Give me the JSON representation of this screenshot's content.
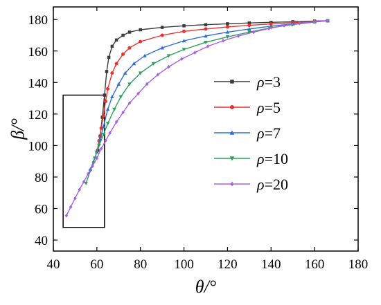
{
  "chart_data": {
    "type": "line",
    "xlabel": "θ/°",
    "ylabel": "β/°",
    "xlim": [
      40,
      180
    ],
    "ylim": [
      33,
      188
    ],
    "x_ticks": [
      40,
      60,
      80,
      100,
      120,
      140,
      160,
      180
    ],
    "y_ticks": [
      40,
      60,
      80,
      100,
      120,
      140,
      160,
      180
    ],
    "legend_position": "right",
    "grid": false,
    "annotation": {
      "type": "rectangle",
      "x_range": [
        44.5,
        63.5
      ],
      "y_range": [
        48,
        132
      ]
    },
    "series": [
      {
        "name": "ρ=3",
        "legend_prefix": "ρ",
        "legend_suffix": "=3",
        "color": "#3b3b3b",
        "marker": "square",
        "x": [
          60.5,
          61.5,
          62.5,
          63.5,
          64.5,
          65.5,
          67,
          69,
          72,
          75,
          80,
          90,
          100,
          110,
          120,
          130,
          140,
          150,
          160,
          166
        ],
        "y": [
          97,
          106,
          118,
          132,
          147,
          156,
          163,
          167,
          170,
          172,
          173.5,
          175,
          176,
          176.7,
          177.3,
          177.8,
          178.2,
          178.6,
          179,
          179.2
        ]
      },
      {
        "name": "ρ=5",
        "legend_prefix": "ρ",
        "legend_suffix": "=5",
        "color": "#e8322d",
        "marker": "circle",
        "x": [
          60,
          61,
          62,
          63,
          64,
          65,
          67,
          69,
          72,
          75,
          80,
          90,
          100,
          110,
          120,
          130,
          140,
          150,
          160,
          166
        ],
        "y": [
          96,
          103,
          111,
          119,
          128,
          136,
          146,
          152,
          158,
          162,
          166,
          170,
          172.5,
          174,
          175.3,
          176.3,
          177.2,
          178,
          178.8,
          179.2
        ]
      },
      {
        "name": "ρ=7",
        "legend_prefix": "ρ",
        "legend_suffix": "=7",
        "color": "#2f6fd6",
        "marker": "triangle-up",
        "x": [
          57,
          58.5,
          60,
          61.5,
          63,
          65,
          67,
          70,
          73,
          77,
          82,
          90,
          100,
          110,
          120,
          130,
          140,
          150,
          160,
          166
        ],
        "y": [
          85,
          90,
          96,
          104,
          112,
          123,
          131,
          139,
          146,
          152,
          157,
          162,
          166.5,
          169.5,
          172,
          174,
          175.8,
          177.2,
          178.5,
          179.2
        ]
      },
      {
        "name": "ρ=10",
        "legend_prefix": "ρ",
        "legend_suffix": "=10",
        "color": "#2aa05c",
        "marker": "triangle-down",
        "x": [
          55,
          57,
          59,
          61,
          63,
          65,
          68,
          71,
          75,
          80,
          86,
          93,
          100,
          110,
          120,
          130,
          140,
          150,
          160,
          166
        ],
        "y": [
          76,
          84,
          92,
          100,
          107,
          114,
          123,
          131,
          139,
          146,
          152,
          157,
          161,
          165.5,
          169,
          172,
          174.8,
          176.8,
          178.4,
          179.2
        ]
      },
      {
        "name": "ρ=20",
        "legend_prefix": "ρ",
        "legend_suffix": "=20",
        "color": "#a85ee8",
        "marker": "diamond",
        "x": [
          46,
          48,
          50,
          52,
          54,
          56,
          58,
          60,
          62,
          64,
          66,
          69,
          72,
          75,
          79,
          83,
          88,
          93,
          99,
          105,
          111,
          118,
          125,
          132,
          139,
          146,
          153,
          160,
          166
        ],
        "y": [
          55.5,
          61,
          66.5,
          72,
          77,
          82,
          87,
          92,
          98,
          103,
          108,
          115,
          121,
          127,
          133,
          139,
          145,
          150,
          155,
          159,
          163,
          166.5,
          169.5,
          172,
          174.3,
          176.1,
          177.6,
          178.6,
          179.2
        ]
      }
    ]
  }
}
